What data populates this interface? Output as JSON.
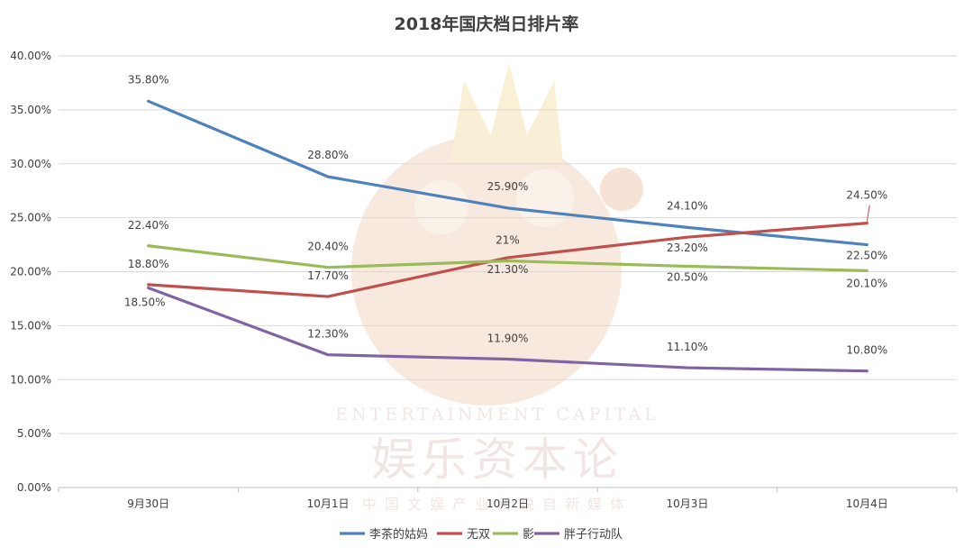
{
  "chart_data": {
    "type": "line",
    "title": "2018年国庆档日排片率",
    "categories": [
      "9月30日",
      "10月1日",
      "10月2日",
      "10月3日",
      "10月4日"
    ],
    "y_ticks": [
      "0.00%",
      "5.00%",
      "10.00%",
      "15.00%",
      "20.00%",
      "25.00%",
      "30.00%",
      "35.00%",
      "40.00%"
    ],
    "ylim": [
      0,
      40
    ],
    "grid": true,
    "legend_position": "bottom",
    "series": [
      {
        "name": "李茶的姑妈",
        "color": "#4f81bd",
        "values": [
          35.8,
          28.8,
          25.9,
          24.1,
          22.5
        ],
        "labels": [
          "35.80%",
          "28.80%",
          "25.90%",
          "24.10%",
          "22.50%"
        ]
      },
      {
        "name": "无双",
        "color": "#c0504d",
        "values": [
          18.8,
          17.7,
          21.3,
          23.2,
          24.5
        ],
        "labels": [
          "18.80%",
          "17.70%",
          "21.30%",
          "23.20%",
          "24.50%"
        ]
      },
      {
        "name": "影",
        "color": "#9bbb59",
        "values": [
          22.4,
          20.4,
          21.0,
          20.5,
          20.1
        ],
        "labels": [
          "22.40%",
          "20.40%",
          "21%",
          "20.50%",
          "20.10%"
        ]
      },
      {
        "name": "胖子行动队",
        "color": "#8064a2",
        "values": [
          18.5,
          12.3,
          11.9,
          11.1,
          10.8
        ],
        "labels": [
          "18.50%",
          "12.30%",
          "11.90%",
          "11.10%",
          "10.80%"
        ]
      }
    ]
  },
  "watermark": {
    "english": "ENTERTAINMENT CAPITAL",
    "chinese": "娱乐资本论",
    "tagline": "中国文娱产业新锐自新媒体"
  }
}
